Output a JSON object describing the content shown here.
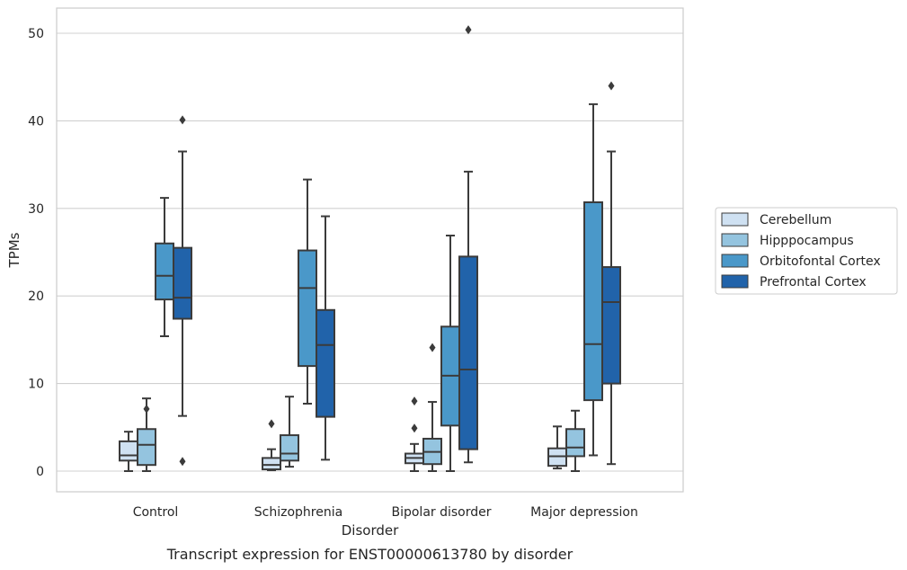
{
  "chart_data": {
    "type": "box",
    "title": "",
    "caption": "Transcript expression for ENST00000613780 by disorder",
    "xlabel": "Disorder",
    "ylabel": "TPMs",
    "ylim": [
      -2.5,
      53
    ],
    "yticks": [
      0,
      10,
      20,
      30,
      40,
      50
    ],
    "grid": true,
    "legend_position": "right",
    "categories": [
      "Control",
      "Schizophrenia",
      "Bipolar disorder",
      "Major depression"
    ],
    "series": [
      {
        "name": "Cerebellum",
        "color": "#cfe1f2",
        "boxes": [
          {
            "whislo": 0.0,
            "q1": 1.2,
            "med": 1.8,
            "q3": 3.4,
            "whishi": 4.5,
            "fliers": []
          },
          {
            "whislo": 0.1,
            "q1": 0.2,
            "med": 0.7,
            "q3": 1.5,
            "whishi": 2.5,
            "fliers": [
              5.4
            ]
          },
          {
            "whislo": 0.0,
            "q1": 0.9,
            "med": 1.5,
            "q3": 2.0,
            "whishi": 3.1,
            "fliers": [
              4.9,
              8.0
            ]
          },
          {
            "whislo": 0.3,
            "q1": 0.6,
            "med": 1.7,
            "q3": 2.6,
            "whishi": 5.1,
            "fliers": []
          }
        ]
      },
      {
        "name": "Hipppocampus",
        "color": "#94c4df",
        "boxes": [
          {
            "whislo": 0.0,
            "q1": 0.7,
            "med": 3.0,
            "q3": 4.8,
            "whishi": 8.3,
            "fliers": [
              7.1
            ]
          },
          {
            "whislo": 0.5,
            "q1": 1.2,
            "med": 2.0,
            "q3": 4.1,
            "whishi": 8.5,
            "fliers": []
          },
          {
            "whislo": 0.0,
            "q1": 0.8,
            "med": 2.2,
            "q3": 3.7,
            "whishi": 7.9,
            "fliers": [
              14.1
            ]
          },
          {
            "whislo": 0.0,
            "q1": 1.7,
            "med": 2.7,
            "q3": 4.8,
            "whishi": 6.9,
            "fliers": []
          }
        ]
      },
      {
        "name": "Orbitofontal Cortex",
        "color": "#4a98c9",
        "boxes": [
          {
            "whislo": 15.4,
            "q1": 19.6,
            "med": 22.3,
            "q3": 26.0,
            "whishi": 31.2,
            "fliers": []
          },
          {
            "whislo": 7.7,
            "q1": 12.0,
            "med": 20.9,
            "q3": 25.2,
            "whishi": 33.3,
            "fliers": []
          },
          {
            "whislo": 0.0,
            "q1": 5.2,
            "med": 10.9,
            "q3": 16.5,
            "whishi": 26.9,
            "fliers": []
          },
          {
            "whislo": 1.8,
            "q1": 8.1,
            "med": 14.5,
            "q3": 30.7,
            "whishi": 41.9,
            "fliers": []
          }
        ]
      },
      {
        "name": "Prefrontal Cortex",
        "color": "#2163aa",
        "boxes": [
          {
            "whislo": 6.3,
            "q1": 17.4,
            "med": 19.8,
            "q3": 25.5,
            "whishi": 36.5,
            "fliers": [
              40.1,
              1.1
            ]
          },
          {
            "whislo": 1.3,
            "q1": 6.2,
            "med": 14.4,
            "q3": 18.4,
            "whishi": 29.1,
            "fliers": []
          },
          {
            "whislo": 1.0,
            "q1": 2.5,
            "med": 11.6,
            "q3": 24.5,
            "whishi": 34.2,
            "fliers": [
              50.4
            ]
          },
          {
            "whislo": 0.8,
            "q1": 10.0,
            "med": 19.3,
            "q3": 23.3,
            "whishi": 36.5,
            "fliers": [
              44.0
            ]
          }
        ]
      }
    ]
  }
}
